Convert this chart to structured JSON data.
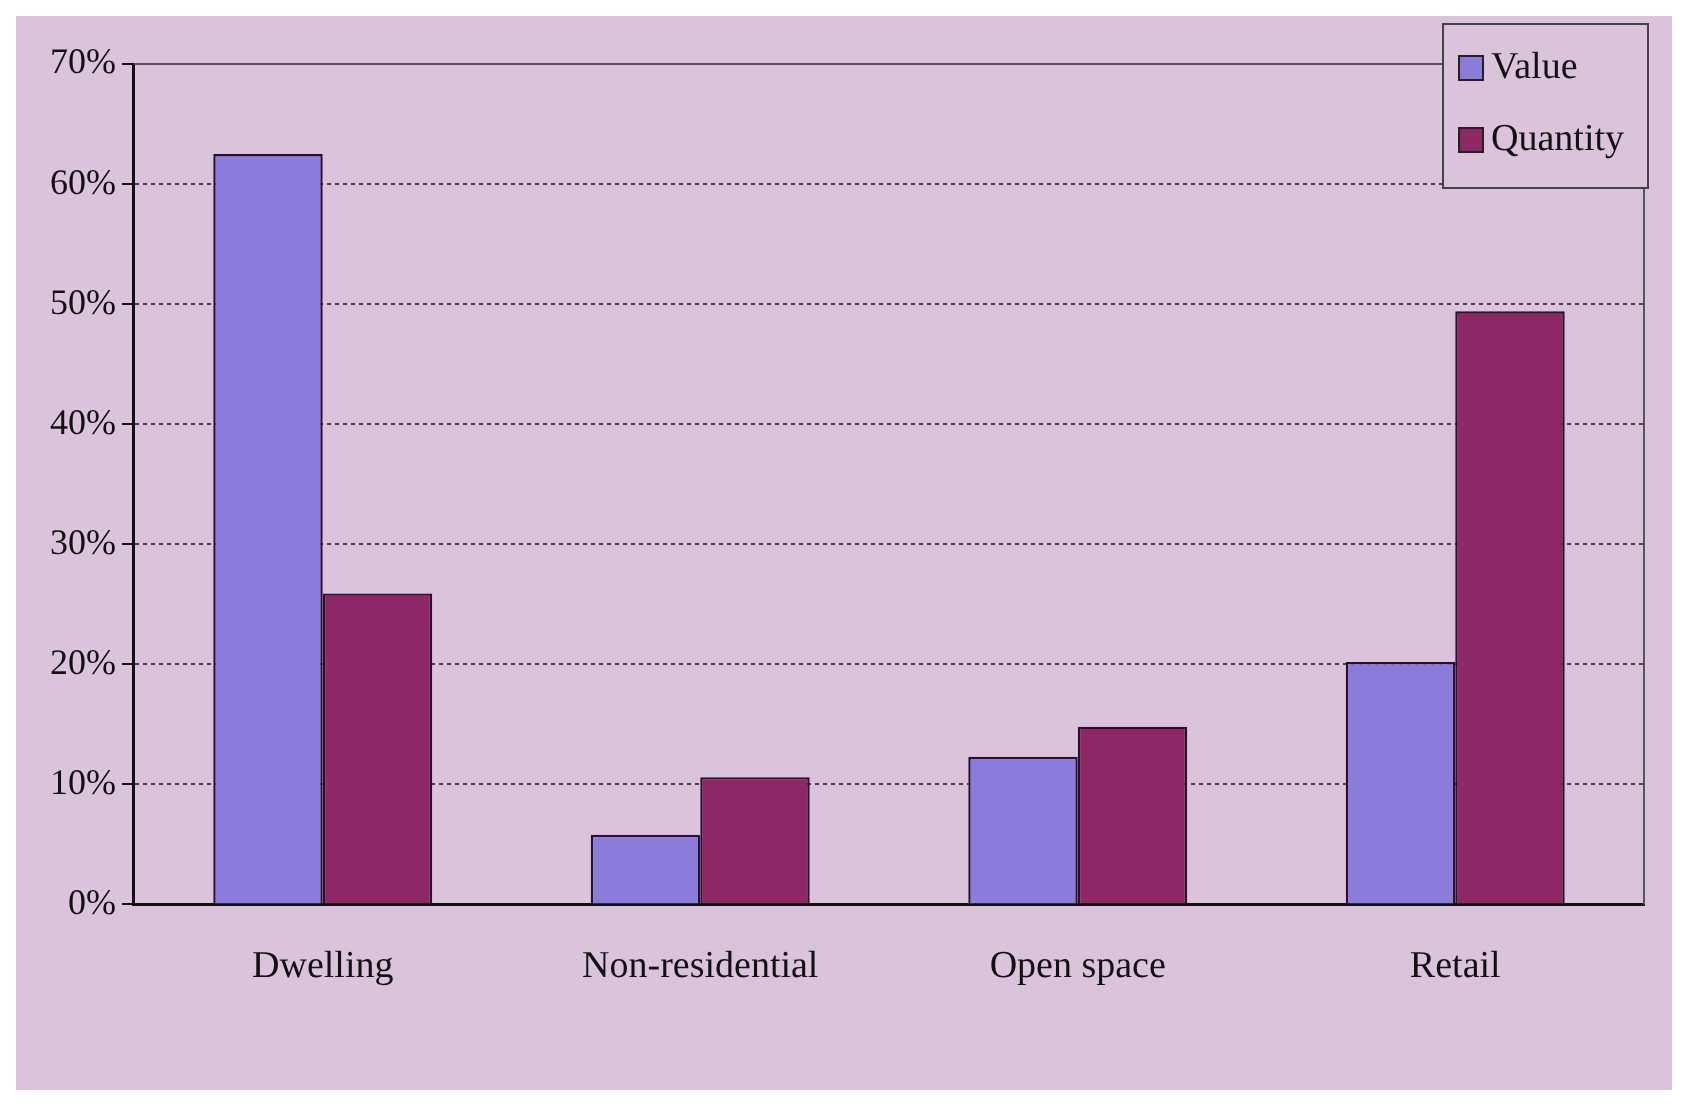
{
  "chart_data": {
    "type": "bar",
    "categories": [
      "Dwelling",
      "Non-residential",
      "Open space",
      "Retail"
    ],
    "series": [
      {
        "name": "Value",
        "color": "#8b7bdb",
        "values": [
          62.5,
          5.8,
          12.3,
          20.2
        ]
      },
      {
        "name": "Quantity",
        "color": "#8e2766",
        "values": [
          25.9,
          10.6,
          14.8,
          49.4
        ]
      }
    ],
    "ylim": [
      0,
      70
    ],
    "yticks": [
      {
        "value": 0,
        "label": "0%"
      },
      {
        "value": 10,
        "label": "10%"
      },
      {
        "value": 20,
        "label": "20%"
      },
      {
        "value": 30,
        "label": "30%"
      },
      {
        "value": 40,
        "label": "40%"
      },
      {
        "value": 50,
        "label": "50%"
      },
      {
        "value": 60,
        "label": "60%"
      },
      {
        "value": 70,
        "label": "70%"
      }
    ],
    "grid": "y",
    "legend": "top right"
  }
}
